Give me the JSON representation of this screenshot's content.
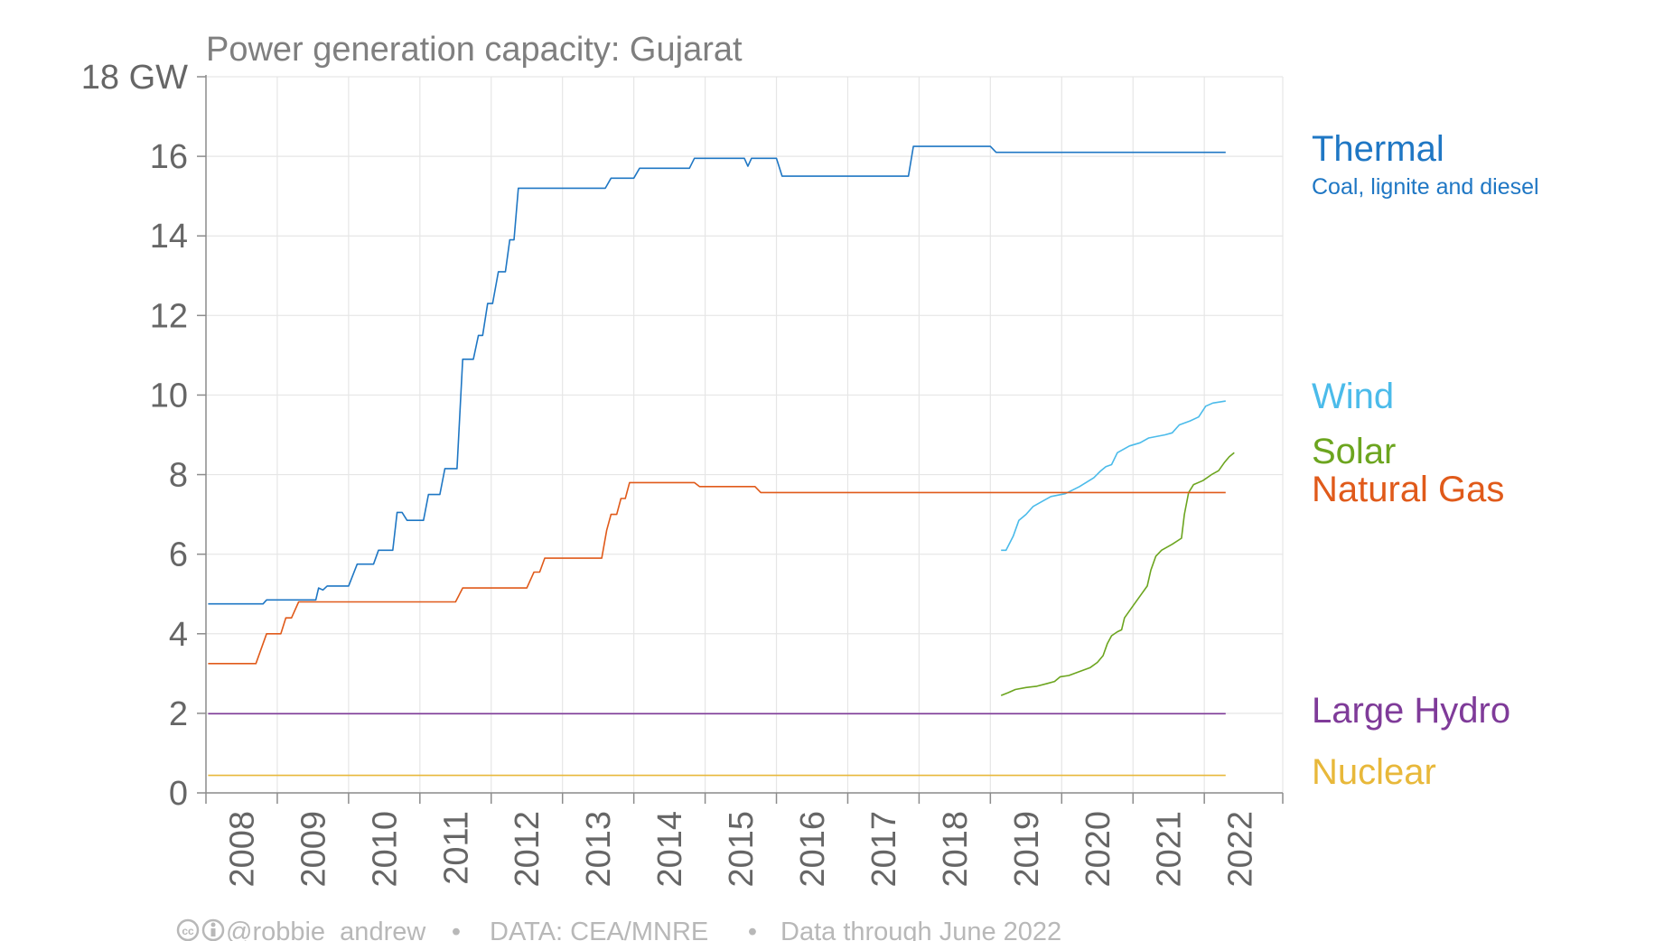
{
  "chart_data": {
    "type": "line",
    "title": "Power generation capacity: Gujarat",
    "ylabel": "",
    "xlabel": "",
    "y_unit_label": "18 GW",
    "ylim": [
      0,
      18
    ],
    "yticks": [
      0,
      2,
      4,
      6,
      8,
      10,
      12,
      14,
      16,
      18
    ],
    "xlim": [
      2007.5,
      2022.6
    ],
    "xticks": [
      2008,
      2009,
      2010,
      2011,
      2012,
      2013,
      2014,
      2015,
      2016,
      2017,
      2018,
      2019,
      2020,
      2021,
      2022
    ],
    "grid": true,
    "legend": "right, labels at line ends",
    "series": [
      {
        "name": "Thermal",
        "sublabel": "Coal, lignite and diesel",
        "color": "#1f77c4",
        "points": [
          [
            2007.53,
            4.75
          ],
          [
            2008.3,
            4.75
          ],
          [
            2008.35,
            4.85
          ],
          [
            2009.04,
            4.85
          ],
          [
            2009.08,
            5.15
          ],
          [
            2009.14,
            5.1
          ],
          [
            2009.2,
            5.2
          ],
          [
            2009.5,
            5.2
          ],
          [
            2009.62,
            5.75
          ],
          [
            2009.85,
            5.75
          ],
          [
            2009.92,
            6.1
          ],
          [
            2010.12,
            6.1
          ],
          [
            2010.18,
            7.05
          ],
          [
            2010.25,
            7.05
          ],
          [
            2010.32,
            6.85
          ],
          [
            2010.55,
            6.85
          ],
          [
            2010.62,
            7.5
          ],
          [
            2010.78,
            7.5
          ],
          [
            2010.85,
            8.15
          ],
          [
            2011.02,
            8.15
          ],
          [
            2011.1,
            10.9
          ],
          [
            2011.25,
            10.9
          ],
          [
            2011.32,
            11.5
          ],
          [
            2011.38,
            11.5
          ],
          [
            2011.45,
            12.3
          ],
          [
            2011.52,
            12.3
          ],
          [
            2011.6,
            13.1
          ],
          [
            2011.7,
            13.1
          ],
          [
            2011.76,
            13.9
          ],
          [
            2011.82,
            13.9
          ],
          [
            2011.88,
            15.2
          ],
          [
            2012.6,
            15.2
          ],
          [
            2013.1,
            15.2
          ],
          [
            2013.18,
            15.45
          ],
          [
            2013.5,
            15.45
          ],
          [
            2013.58,
            15.7
          ],
          [
            2014.28,
            15.7
          ],
          [
            2014.35,
            15.95
          ],
          [
            2015.05,
            15.95
          ],
          [
            2015.1,
            15.75
          ],
          [
            2015.15,
            15.95
          ],
          [
            2015.5,
            15.95
          ],
          [
            2015.58,
            15.5
          ],
          [
            2016.5,
            15.5
          ],
          [
            2017.2,
            15.5
          ],
          [
            2017.35,
            15.5
          ],
          [
            2017.42,
            16.25
          ],
          [
            2018.5,
            16.25
          ],
          [
            2018.58,
            16.1
          ],
          [
            2019.5,
            16.1
          ],
          [
            2020.5,
            16.1
          ],
          [
            2021.8,
            16.1
          ]
        ]
      },
      {
        "name": "Wind",
        "color": "#4bbbea",
        "points": [
          [
            2018.65,
            6.1
          ],
          [
            2018.72,
            6.1
          ],
          [
            2018.82,
            6.45
          ],
          [
            2018.9,
            6.85
          ],
          [
            2019.0,
            7.0
          ],
          [
            2019.1,
            7.2
          ],
          [
            2019.25,
            7.35
          ],
          [
            2019.35,
            7.45
          ],
          [
            2019.55,
            7.52
          ],
          [
            2019.75,
            7.7
          ],
          [
            2019.95,
            7.92
          ],
          [
            2020.05,
            8.1
          ],
          [
            2020.12,
            8.2
          ],
          [
            2020.2,
            8.25
          ],
          [
            2020.28,
            8.55
          ],
          [
            2020.45,
            8.72
          ],
          [
            2020.6,
            8.8
          ],
          [
            2020.72,
            8.92
          ],
          [
            2020.95,
            9.0
          ],
          [
            2021.05,
            9.05
          ],
          [
            2021.15,
            9.25
          ],
          [
            2021.3,
            9.35
          ],
          [
            2021.42,
            9.45
          ],
          [
            2021.52,
            9.72
          ],
          [
            2021.62,
            9.8
          ],
          [
            2021.8,
            9.85
          ]
        ]
      },
      {
        "name": "Solar",
        "color": "#6ca51f",
        "points": [
          [
            2018.65,
            2.45
          ],
          [
            2018.75,
            2.52
          ],
          [
            2018.85,
            2.6
          ],
          [
            2019.0,
            2.65
          ],
          [
            2019.15,
            2.68
          ],
          [
            2019.3,
            2.75
          ],
          [
            2019.4,
            2.8
          ],
          [
            2019.48,
            2.92
          ],
          [
            2019.6,
            2.95
          ],
          [
            2019.75,
            3.05
          ],
          [
            2019.9,
            3.15
          ],
          [
            2020.0,
            3.28
          ],
          [
            2020.08,
            3.45
          ],
          [
            2020.14,
            3.75
          ],
          [
            2020.2,
            3.95
          ],
          [
            2020.28,
            4.05
          ],
          [
            2020.34,
            4.1
          ],
          [
            2020.38,
            4.4
          ],
          [
            2020.5,
            4.7
          ],
          [
            2020.62,
            5.0
          ],
          [
            2020.7,
            5.2
          ],
          [
            2020.75,
            5.6
          ],
          [
            2020.82,
            5.95
          ],
          [
            2020.9,
            6.1
          ],
          [
            2021.05,
            6.25
          ],
          [
            2021.18,
            6.4
          ],
          [
            2021.22,
            7.0
          ],
          [
            2021.28,
            7.55
          ],
          [
            2021.35,
            7.75
          ],
          [
            2021.48,
            7.85
          ],
          [
            2021.6,
            8.0
          ],
          [
            2021.7,
            8.1
          ],
          [
            2021.78,
            8.3
          ],
          [
            2021.85,
            8.45
          ],
          [
            2021.92,
            8.55
          ]
        ]
      },
      {
        "name": "Natural Gas",
        "color": "#e05a1a",
        "points": [
          [
            2007.53,
            3.25
          ],
          [
            2008.2,
            3.25
          ],
          [
            2008.35,
            4.0
          ],
          [
            2008.55,
            4.0
          ],
          [
            2008.62,
            4.4
          ],
          [
            2008.7,
            4.4
          ],
          [
            2008.8,
            4.8
          ],
          [
            2010.0,
            4.8
          ],
          [
            2011.0,
            4.8
          ],
          [
            2011.1,
            5.15
          ],
          [
            2012.0,
            5.15
          ],
          [
            2012.1,
            5.55
          ],
          [
            2012.18,
            5.55
          ],
          [
            2012.25,
            5.9
          ],
          [
            2013.05,
            5.9
          ],
          [
            2013.12,
            6.6
          ],
          [
            2013.18,
            7.0
          ],
          [
            2013.26,
            7.0
          ],
          [
            2013.32,
            7.4
          ],
          [
            2013.38,
            7.4
          ],
          [
            2013.44,
            7.8
          ],
          [
            2014.35,
            7.8
          ],
          [
            2014.42,
            7.7
          ],
          [
            2015.2,
            7.7
          ],
          [
            2015.28,
            7.55
          ],
          [
            2017.0,
            7.55
          ],
          [
            2019.0,
            7.55
          ],
          [
            2021.0,
            7.55
          ],
          [
            2021.8,
            7.55
          ]
        ]
      },
      {
        "name": "Large Hydro",
        "color": "#7f3b99",
        "points": [
          [
            2007.53,
            1.99
          ],
          [
            2021.8,
            1.99
          ]
        ]
      },
      {
        "name": "Nuclear",
        "color": "#e8b83a",
        "points": [
          [
            2007.53,
            0.44
          ],
          [
            2021.8,
            0.44
          ]
        ]
      }
    ],
    "footer": {
      "credit": "@robbie_andrew",
      "source": "DATA: CEA/MNRE",
      "note": "Data through June 2022",
      "separator": "•"
    }
  }
}
